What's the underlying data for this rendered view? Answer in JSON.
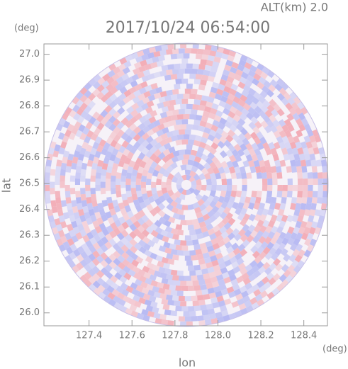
{
  "chart_data": {
    "type": "polar-field",
    "title": "2017/10/24 06:54:00",
    "subtitle": "ALT(km) 2.0",
    "x_label": "lon",
    "y_label": "lat",
    "x_unit": "(deg)",
    "y_unit": "(deg)",
    "xlim": [
      127.19,
      128.51
    ],
    "ylim": [
      25.95,
      27.04
    ],
    "xticks": [
      127.4,
      127.6,
      127.8,
      {
        "value": 128,
        "label": "128.0"
      },
      128.2,
      128.4
    ],
    "yticks": [
      {
        "value": 26,
        "label": "26.0"
      },
      26.1,
      26.2,
      26.3,
      26.4,
      26.5,
      26.6,
      26.7,
      26.8,
      26.9,
      {
        "value": 27,
        "label": "27.0"
      }
    ]
  }
}
